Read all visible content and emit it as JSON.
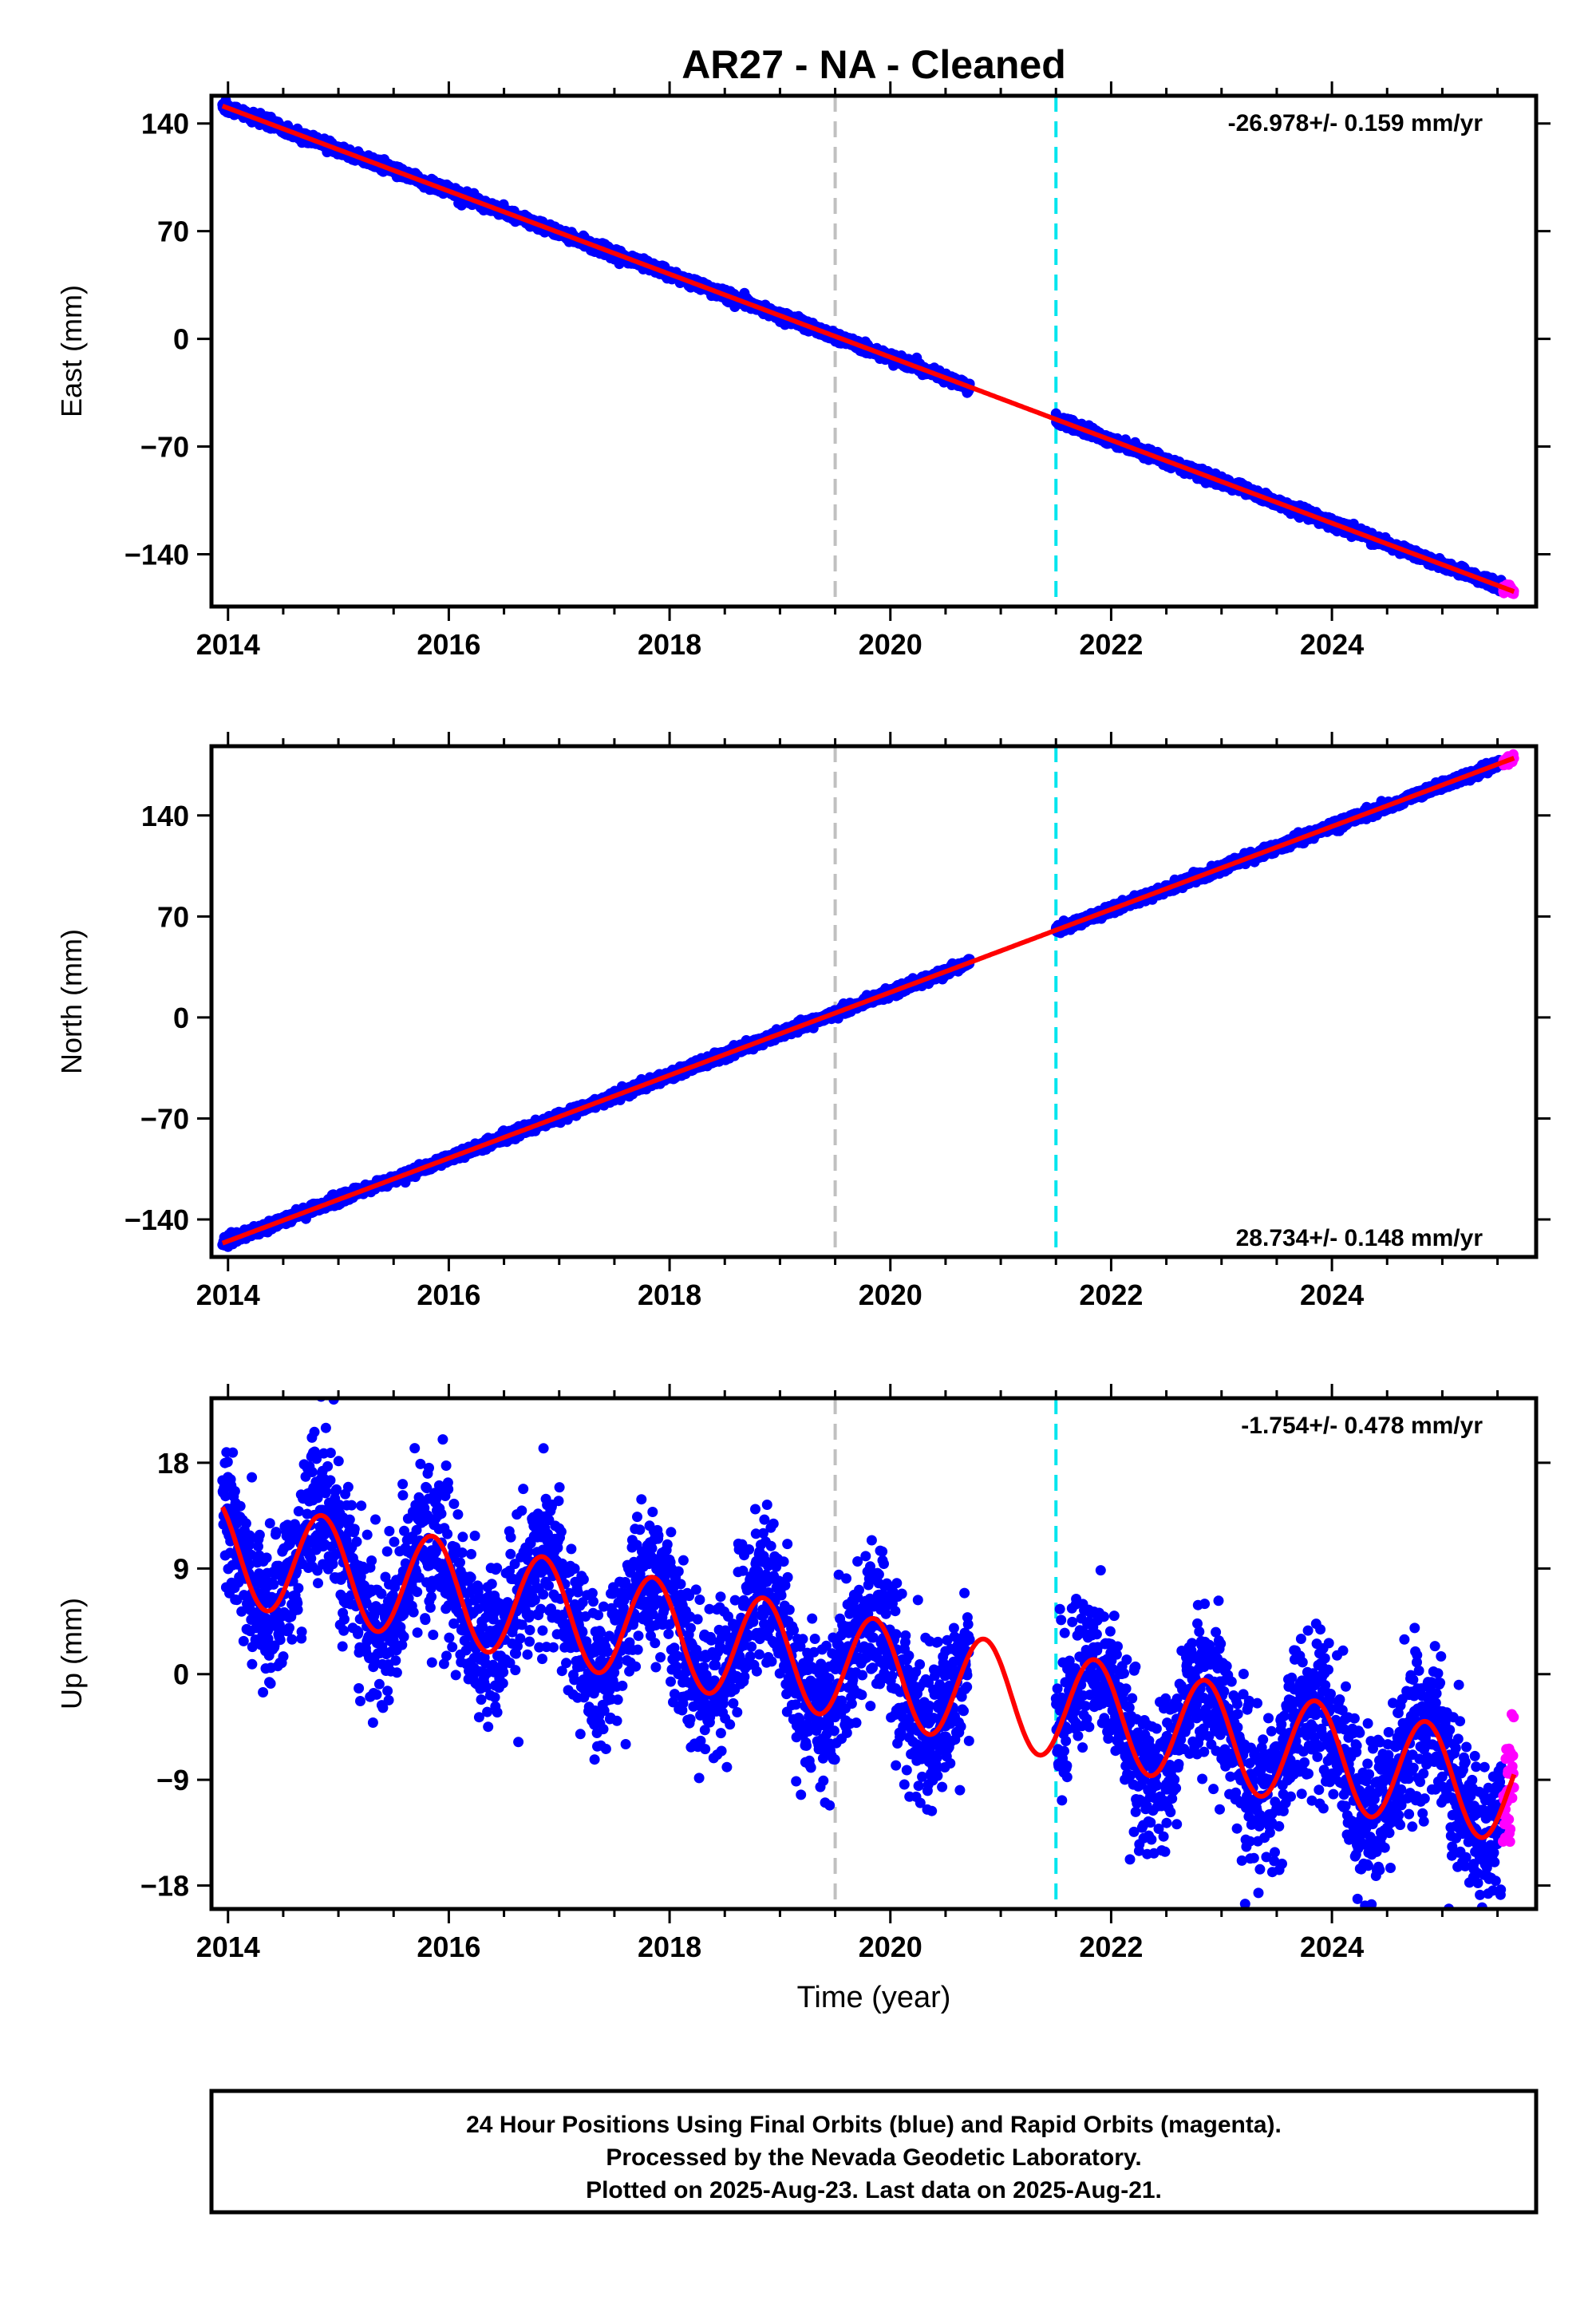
{
  "chart_data": {
    "type": "scatter",
    "title": "AR27  - NA - Cleaned",
    "xlabel": "Time (year)",
    "xlim": [
      2013.85,
      2025.85
    ],
    "x_ticks": [
      "2014",
      "2016",
      "2018",
      "2020",
      "2022",
      "2024"
    ],
    "vlines": [
      {
        "x": 2019.5,
        "color": "#c0c0c0",
        "style": "dashed"
      },
      {
        "x": 2021.5,
        "color": "#00e5ee",
        "style": "dashed"
      }
    ],
    "legend": "none",
    "grid": false,
    "panels": [
      {
        "id": "east",
        "ylabel": "East (mm)",
        "ylim": [
          -174,
          158
        ],
        "y_ticks": [
          140,
          70,
          0,
          -70,
          -140
        ],
        "rate_text": "-26.978+/- 0.159 mm/yr",
        "rate_position": "top-right",
        "trend": {
          "rate": -26.978,
          "y_at_2014": 150
        },
        "noise_mm": 1.6,
        "series": [
          {
            "name": "Final Orbits",
            "color": "#0000ff",
            "kind": "points",
            "ranges": [
              [
                2013.95,
                2020.72
              ],
              [
                2021.5,
                2025.55
              ]
            ]
          },
          {
            "name": "Rapid Orbits",
            "color": "#ff00ff",
            "kind": "points",
            "ranges": [
              [
                2025.55,
                2025.65
              ]
            ]
          },
          {
            "name": "Model",
            "color": "#ff0000",
            "kind": "line",
            "ranges": [
              [
                2013.95,
                2025.65
              ]
            ]
          }
        ]
      },
      {
        "id": "north",
        "ylabel": "North (mm)",
        "ylim": [
          -166,
          188
        ],
        "y_ticks": [
          140,
          70,
          0,
          -70,
          -140
        ],
        "rate_text": "28.734+/- 0.148 mm/yr",
        "rate_position": "bottom-right",
        "trend": {
          "rate": 28.734,
          "y_at_2014": -155
        },
        "noise_mm": 1.6,
        "series": [
          {
            "name": "Final Orbits",
            "color": "#0000ff",
            "kind": "points",
            "ranges": [
              [
                2013.95,
                2020.72
              ],
              [
                2021.5,
                2025.55
              ]
            ]
          },
          {
            "name": "Rapid Orbits",
            "color": "#ff00ff",
            "kind": "points",
            "ranges": [
              [
                2025.55,
                2025.65
              ]
            ]
          },
          {
            "name": "Model",
            "color": "#ff0000",
            "kind": "line",
            "ranges": [
              [
                2013.95,
                2025.65
              ]
            ]
          }
        ]
      },
      {
        "id": "up",
        "ylabel": "Up (mm)",
        "ylim": [
          -20,
          23.5
        ],
        "y_ticks": [
          18,
          9,
          0,
          -9,
          -18
        ],
        "rate_text": "-1.754+/- 0.478 mm/yr",
        "rate_position": "top-right",
        "trend": {
          "rate": -1.754,
          "y_at_2014": 10.5
        },
        "annual_amplitude_mm": 4.5,
        "annual_peak_phase_year": 0.85,
        "noise_mm": 3.2,
        "series": [
          {
            "name": "Final Orbits",
            "color": "#0000ff",
            "kind": "points",
            "ranges": [
              [
                2013.95,
                2020.72
              ],
              [
                2021.5,
                2025.55
              ]
            ]
          },
          {
            "name": "Rapid Orbits",
            "color": "#ff00ff",
            "kind": "points",
            "ranges": [
              [
                2025.55,
                2025.65
              ]
            ]
          },
          {
            "name": "Model",
            "color": "#ff0000",
            "kind": "line",
            "ranges": [
              [
                2013.95,
                2025.65
              ]
            ]
          }
        ]
      }
    ]
  },
  "footer": {
    "line1": "24 Hour Positions Using Final Orbits (blue) and Rapid Orbits (magenta).",
    "line2": "Processed by the Nevada Geodetic Laboratory.",
    "line3": "Plotted on 2025-Aug-23. Last data on 2025-Aug-21."
  }
}
